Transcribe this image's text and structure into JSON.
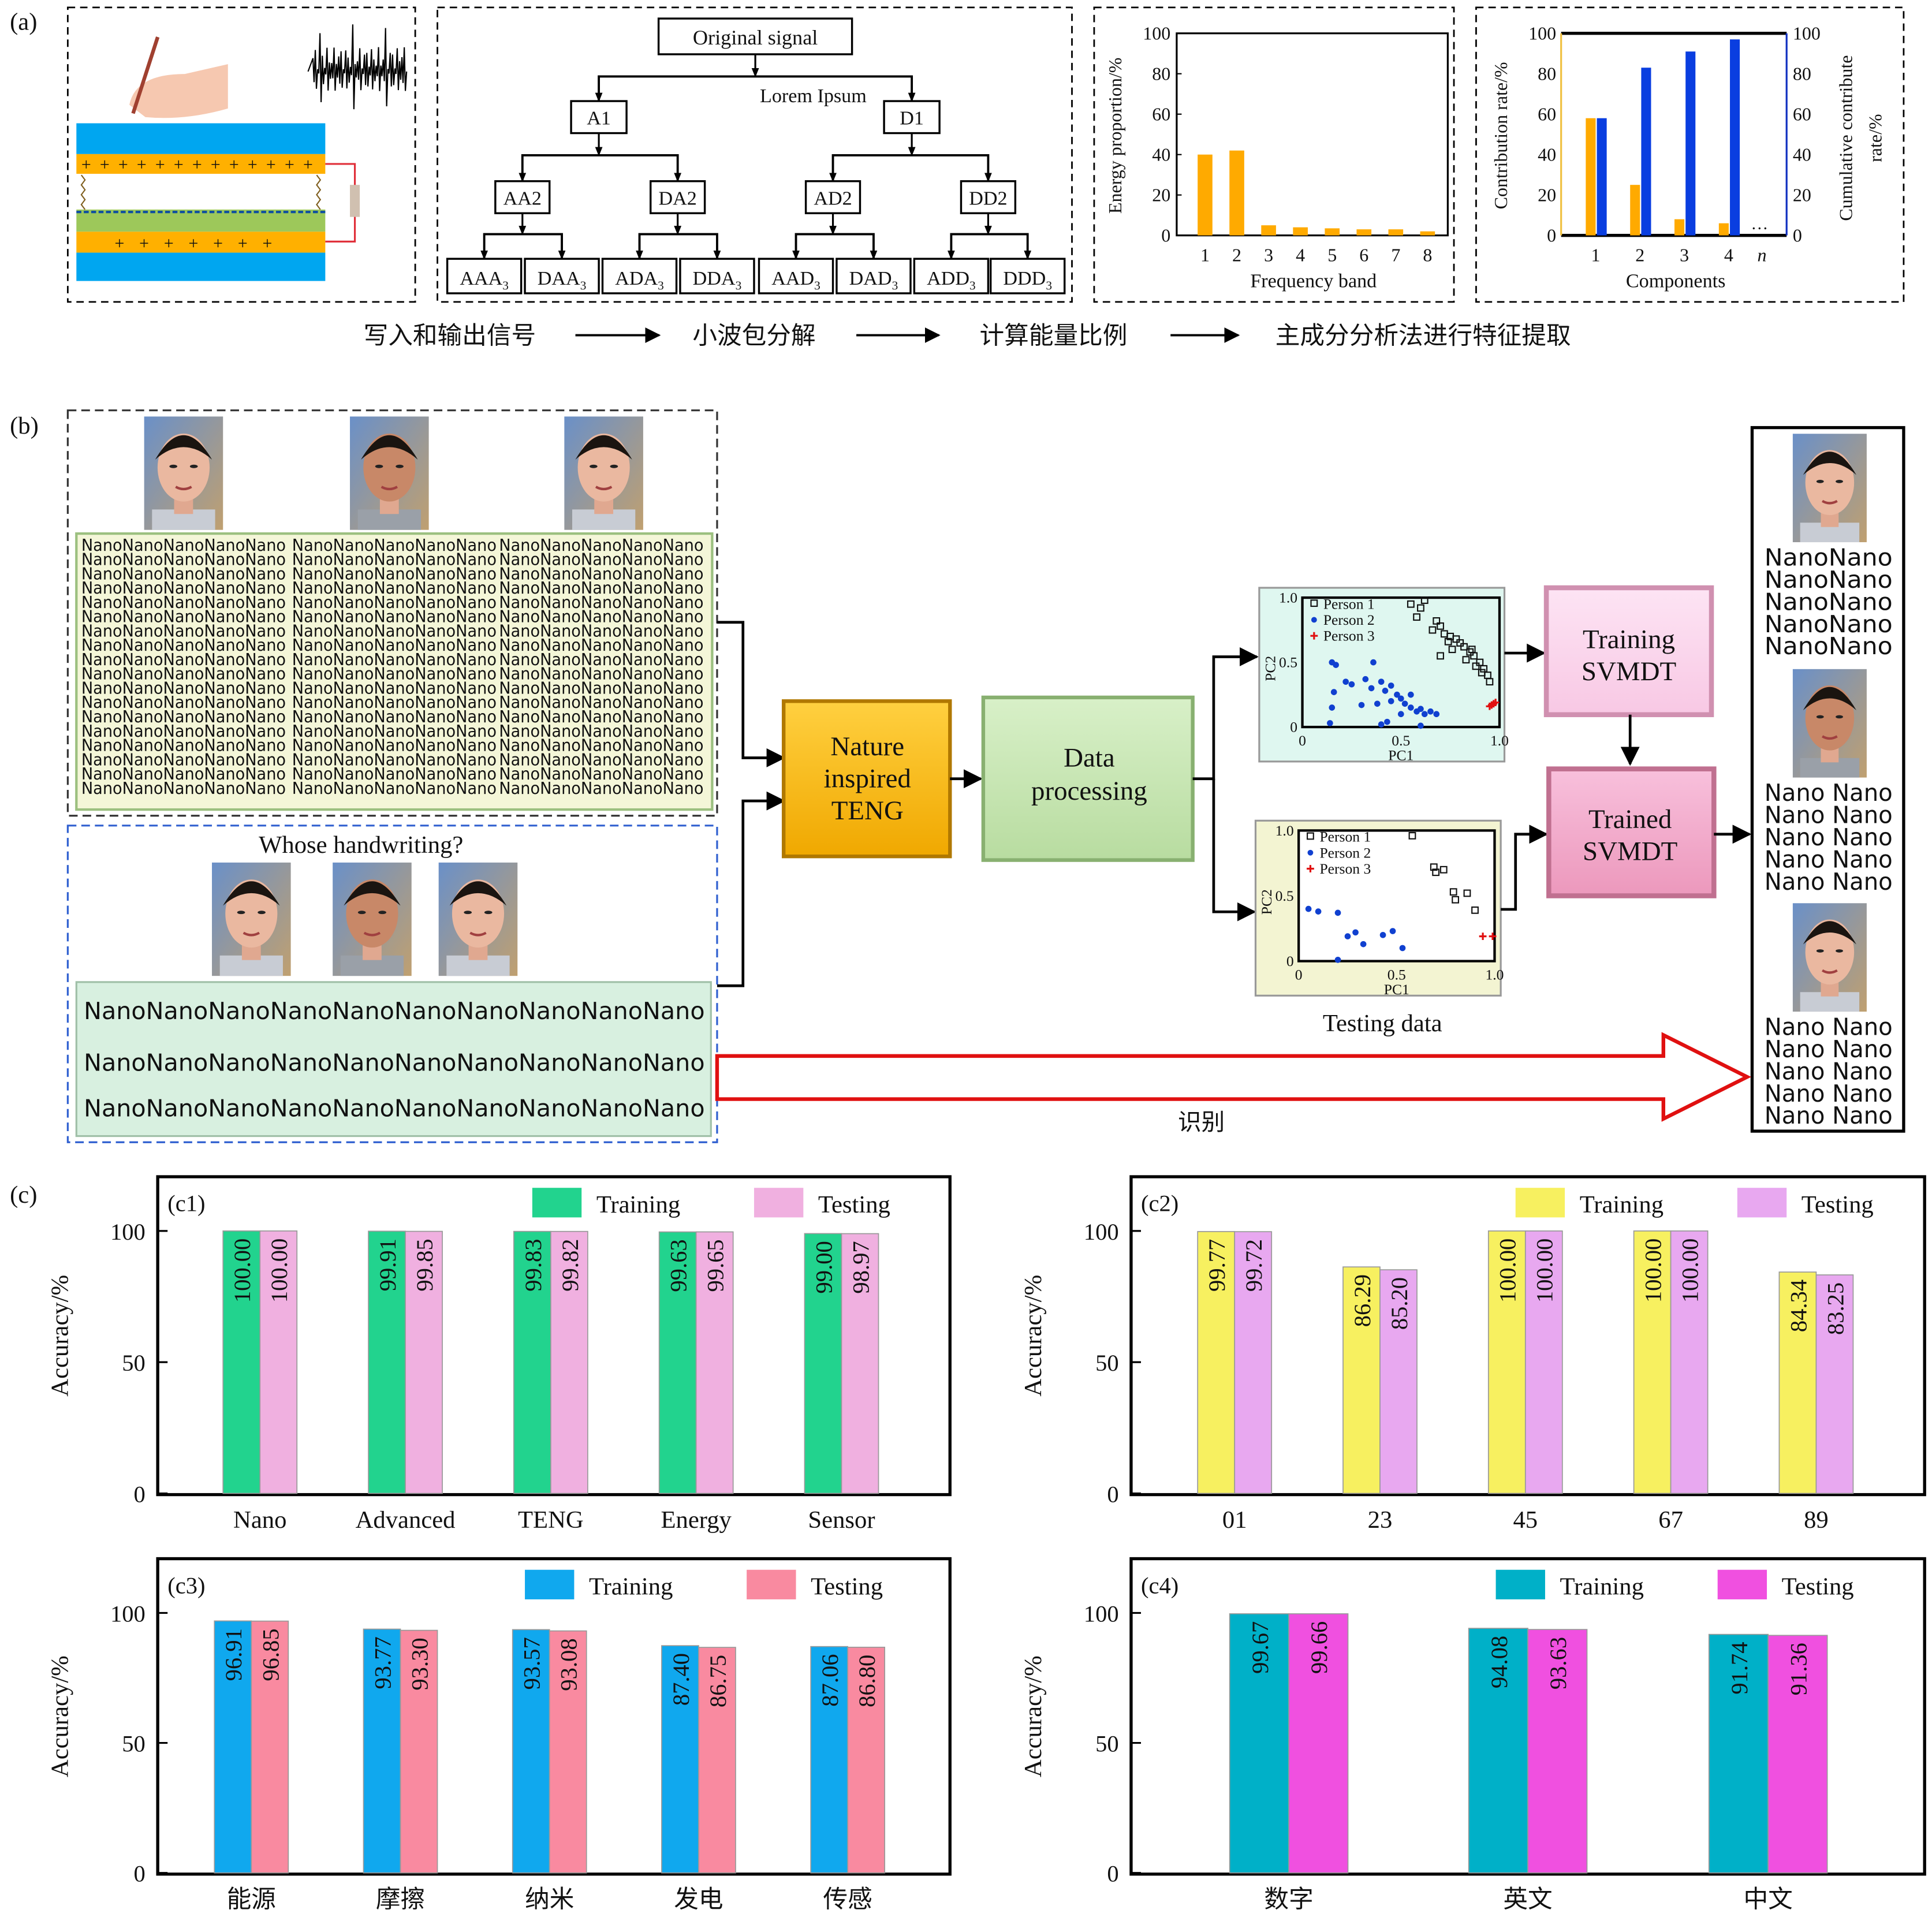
{
  "panel_labels": {
    "a": "(a)",
    "b": "(b)",
    "c": "(c)"
  },
  "a": {
    "tree": {
      "root": "Original signal",
      "note": "Lorem Ipsum",
      "l1": [
        "A1",
        "D1"
      ],
      "l2": [
        "AA2",
        "DA2",
        "AD2",
        "DD2"
      ],
      "l3": [
        "AAA",
        "DAA",
        "ADA",
        "DDA",
        "AAD",
        "DAD",
        "ADD",
        "DDD"
      ],
      "l3_sub": "3"
    },
    "flow": [
      "写入和输出信号",
      "小波包分解",
      "计算能量比例",
      "主成分分析法进行特征提取"
    ],
    "device_colors": {
      "electrode": "#00a6f0",
      "layer": "#ffb000",
      "film": "#9dc85a",
      "wire": "#e0303a"
    }
  },
  "b": {
    "nano_rows": {
      "green": "NanoNanoNanoNanoNano",
      "orange": "NanoNanoNanoNanoNano",
      "purple": "NanoNanoNanoNanoNano"
    },
    "question": "Whose handwriting?",
    "test_lines": [
      "NanoNanoNanoNanoNanoNanoNanoNanoNanoNano",
      "NanoNanoNanoNanoNanoNanoNanoNanoNanoNano",
      "NanoNanoNanoNanoNanoNanoNanoNanoNanoNano"
    ],
    "teng": [
      "Nature",
      "inspired",
      "TENG"
    ],
    "processing": [
      "Data",
      "processing"
    ],
    "training": [
      "Training",
      "SVMDT"
    ],
    "trained": [
      "Trained",
      "SVMDT"
    ],
    "testing_label": "Testing data",
    "recognize": "识别",
    "results": {
      "p1": "NanoNano",
      "p2": "Nano Nano",
      "p3": "Nano Nano"
    },
    "colors": {
      "p1": "#10a878",
      "p2": "#f07088",
      "p3": "#8080e8",
      "accent_red": "#e01010"
    }
  },
  "chart_data": [
    {
      "id": "a-energy",
      "type": "bar",
      "xlabel": "Frequency band",
      "ylabel": "Energy proportion/%",
      "categories": [
        "1",
        "2",
        "3",
        "4",
        "5",
        "6",
        "7",
        "8"
      ],
      "values": [
        40,
        42,
        5,
        4,
        3.5,
        3,
        3,
        2
      ],
      "ylim": [
        0,
        100
      ],
      "yticks": [
        "0",
        "20",
        "40",
        "60",
        "80",
        "100"
      ],
      "color": "#ffaa00"
    },
    {
      "id": "a-pca",
      "type": "bar",
      "xlabel": "Components",
      "ylabel": "Contribution rate/%",
      "y2label_lines": [
        "Cumulative contribute",
        "rate/%"
      ],
      "categories": [
        "1",
        "2",
        "3",
        "4",
        "n"
      ],
      "annotation": "…",
      "series": [
        {
          "name": "Contribution rate",
          "values": [
            58,
            25,
            8,
            6,
            null
          ],
          "color": "#ffaa00"
        },
        {
          "name": "Cumulative contribute rate",
          "values": [
            58,
            83,
            91,
            97,
            null
          ],
          "color": "#0a3ee0"
        }
      ],
      "ylim": [
        0,
        100
      ],
      "yticks": [
        "0",
        "20",
        "40",
        "60",
        "80",
        "100"
      ],
      "axis_colors": {
        "left": "#f0c040",
        "right": "#1030c0"
      }
    },
    {
      "id": "b-training-scatter",
      "type": "scatter",
      "xlabel": "PC1",
      "ylabel": "PC2",
      "xlim": [
        0,
        1
      ],
      "ylim": [
        0,
        1
      ],
      "xticks": [
        "0",
        "0.5",
        "1.0"
      ],
      "yticks": [
        "0",
        "0.5",
        "1.0"
      ],
      "background": "#dff7f0",
      "series": [
        {
          "name": "Person 1",
          "marker": "square",
          "color": "#111111",
          "points": [
            [
              0.55,
              0.95
            ],
            [
              0.62,
              0.98
            ],
            [
              0.6,
              0.92
            ],
            [
              0.58,
              0.85
            ],
            [
              0.68,
              0.82
            ],
            [
              0.7,
              0.78
            ],
            [
              0.66,
              0.75
            ],
            [
              0.72,
              0.72
            ],
            [
              0.75,
              0.7
            ],
            [
              0.78,
              0.68
            ],
            [
              0.8,
              0.65
            ],
            [
              0.82,
              0.62
            ],
            [
              0.85,
              0.58
            ],
            [
              0.87,
              0.55
            ],
            [
              0.9,
              0.5
            ],
            [
              0.92,
              0.45
            ],
            [
              0.94,
              0.4
            ],
            [
              0.95,
              0.35
            ],
            [
              0.7,
              0.55
            ],
            [
              0.76,
              0.6
            ],
            [
              0.83,
              0.52
            ],
            [
              0.88,
              0.47
            ],
            [
              0.91,
              0.42
            ],
            [
              0.74,
              0.66
            ],
            [
              0.86,
              0.6
            ]
          ]
        },
        {
          "name": "Person 2",
          "marker": "dot",
          "color": "#1040d0",
          "points": [
            [
              0.15,
              0.5
            ],
            [
              0.17,
              0.48
            ],
            [
              0.36,
              0.5
            ],
            [
              0.22,
              0.35
            ],
            [
              0.25,
              0.33
            ],
            [
              0.32,
              0.37
            ],
            [
              0.35,
              0.3
            ],
            [
              0.4,
              0.35
            ],
            [
              0.42,
              0.28
            ],
            [
              0.45,
              0.32
            ],
            [
              0.48,
              0.25
            ],
            [
              0.5,
              0.22
            ],
            [
              0.52,
              0.18
            ],
            [
              0.55,
              0.15
            ],
            [
              0.58,
              0.12
            ],
            [
              0.6,
              0.14
            ],
            [
              0.62,
              0.1
            ],
            [
              0.65,
              0.12
            ],
            [
              0.68,
              0.1
            ],
            [
              0.55,
              0.25
            ],
            [
              0.45,
              0.2
            ],
            [
              0.3,
              0.17
            ],
            [
              0.16,
              0.27
            ],
            [
              0.15,
              0.15
            ],
            [
              0.14,
              0.03
            ],
            [
              0.4,
              0.02
            ],
            [
              0.43,
              0.04
            ],
            [
              0.6,
              0.01
            ],
            [
              0.5,
              0.1
            ],
            [
              0.38,
              0.18
            ]
          ]
        },
        {
          "name": "Person 3",
          "marker": "plus",
          "color": "#e01010",
          "points": [
            [
              0.95,
              0.16
            ],
            [
              0.96,
              0.17
            ],
            [
              0.97,
              0.18
            ],
            [
              0.98,
              0.19
            ]
          ]
        }
      ]
    },
    {
      "id": "b-testing-scatter",
      "type": "scatter",
      "xlabel": "PC1",
      "ylabel": "PC2",
      "xlim": [
        0,
        1
      ],
      "ylim": [
        0,
        1
      ],
      "xticks": [
        "0",
        "0.5",
        "1.0"
      ],
      "yticks": [
        "0",
        "0.5",
        "1.0"
      ],
      "background": "#f3f4d2",
      "series": [
        {
          "name": "Person 1",
          "marker": "square",
          "color": "#111111",
          "points": [
            [
              0.58,
              0.96
            ],
            [
              0.69,
              0.72
            ],
            [
              0.7,
              0.68
            ],
            [
              0.74,
              0.7
            ],
            [
              0.79,
              0.53
            ],
            [
              0.8,
              0.47
            ],
            [
              0.86,
              0.52
            ],
            [
              0.9,
              0.39
            ]
          ]
        },
        {
          "name": "Person 2",
          "marker": "dot",
          "color": "#1040d0",
          "points": [
            [
              0.05,
              0.4
            ],
            [
              0.1,
              0.38
            ],
            [
              0.2,
              0.37
            ],
            [
              0.25,
              0.19
            ],
            [
              0.29,
              0.22
            ],
            [
              0.33,
              0.13
            ],
            [
              0.43,
              0.2
            ],
            [
              0.48,
              0.23
            ],
            [
              0.53,
              0.1
            ],
            [
              0.2,
              0.01
            ]
          ]
        },
        {
          "name": "Person 3",
          "marker": "plus",
          "color": "#e01010",
          "points": [
            [
              0.94,
              0.19
            ],
            [
              0.99,
              0.19
            ]
          ]
        }
      ]
    },
    {
      "id": "c1",
      "type": "bar",
      "panel": "(c1)",
      "ylabel": "Accuracy/%",
      "categories": [
        "Nano",
        "Advanced",
        "TENG",
        "Energy",
        "Sensor"
      ],
      "series": [
        {
          "name": "Training",
          "values": [
            100.0,
            99.91,
            99.83,
            99.63,
            99.0
          ],
          "labels": [
            "100.00",
            "99.91",
            "99.83",
            "99.63",
            "99.00"
          ],
          "color": "#22d38e"
        },
        {
          "name": "Testing",
          "values": [
            100.0,
            99.85,
            99.82,
            99.65,
            98.97
          ],
          "labels": [
            "100.00",
            "99.85",
            "99.82",
            "99.65",
            "98.97"
          ],
          "color": "#f0b0e0"
        }
      ],
      "ylim": [
        0,
        120
      ],
      "yticks": [
        "0",
        "50",
        "100"
      ],
      "legend": "top-right"
    },
    {
      "id": "c2",
      "type": "bar",
      "panel": "(c2)",
      "ylabel": "Accuracy/%",
      "categories": [
        "01",
        "23",
        "45",
        "67",
        "89"
      ],
      "series": [
        {
          "name": "Training",
          "values": [
            99.77,
            86.29,
            100.0,
            100.0,
            84.34
          ],
          "labels": [
            "99.77",
            "86.29",
            "100.00",
            "100.00",
            "84.34"
          ],
          "color": "#f7f060"
        },
        {
          "name": "Testing",
          "values": [
            99.72,
            85.2,
            100.0,
            100.0,
            83.25
          ],
          "labels": [
            "99.72",
            "85.20",
            "100.00",
            "100.00",
            "83.25"
          ],
          "color": "#e8a8f0"
        }
      ],
      "ylim": [
        0,
        120
      ],
      "yticks": [
        "0",
        "50",
        "100"
      ],
      "legend": "top-right"
    },
    {
      "id": "c3",
      "type": "bar",
      "panel": "(c3)",
      "ylabel": "Accuracy/%",
      "categories": [
        "能源",
        "摩擦",
        "纳米",
        "发电",
        "传感"
      ],
      "series": [
        {
          "name": "Training",
          "values": [
            96.91,
            93.77,
            93.57,
            87.4,
            87.06
          ],
          "labels": [
            "96.91",
            "93.77",
            "93.57",
            "87.40",
            "87.06"
          ],
          "color": "#10a8ee"
        },
        {
          "name": "Testing",
          "values": [
            96.85,
            93.3,
            93.08,
            86.75,
            86.8
          ],
          "labels": [
            "96.85",
            "93.30",
            "93.08",
            "86.75",
            "86.80"
          ],
          "color": "#f98aa0"
        }
      ],
      "ylim": [
        0,
        115
      ],
      "yticks": [
        "0",
        "50",
        "100"
      ],
      "legend": "top-right"
    },
    {
      "id": "c4",
      "type": "bar",
      "panel": "(c4)",
      "ylabel": "Accuracy/%",
      "categories": [
        "数字",
        "英文",
        "中文"
      ],
      "series": [
        {
          "name": "Training",
          "values": [
            99.67,
            94.08,
            91.74
          ],
          "labels": [
            "99.67",
            "94.08",
            "91.74"
          ],
          "color": "#00b0c8"
        },
        {
          "name": "Testing",
          "values": [
            99.66,
            93.63,
            91.36
          ],
          "labels": [
            "99.66",
            "93.63",
            "91.36"
          ],
          "color": "#f050e0"
        }
      ],
      "ylim": [
        0,
        115
      ],
      "yticks": [
        "0",
        "50",
        "100"
      ],
      "legend": "top-right"
    }
  ]
}
